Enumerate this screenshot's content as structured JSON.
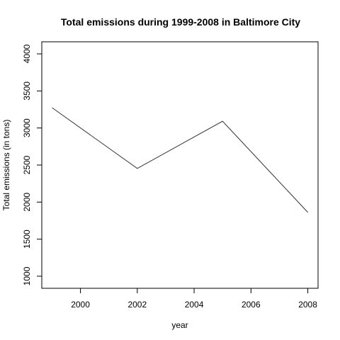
{
  "chart_data": {
    "type": "line",
    "title": "Total emissions during 1999-2008 in Baltimore City",
    "xlabel": "year",
    "ylabel": "Total emissions (in tons)",
    "x": [
      1999,
      2002,
      2005,
      2008
    ],
    "series": [
      {
        "values": [
          3274,
          2454,
          3091,
          1862
        ]
      }
    ],
    "xlim": [
      1999,
      2008
    ],
    "ylim": [
      1000,
      4000
    ],
    "xticks": [
      "2000",
      "2002",
      "2004",
      "2006",
      "2008"
    ],
    "yticks": [
      "1000",
      "1500",
      "2000",
      "2500",
      "3000",
      "3500",
      "4000"
    ],
    "grid": false,
    "colors": {
      "line": "#333333",
      "axis": "#000000"
    }
  }
}
